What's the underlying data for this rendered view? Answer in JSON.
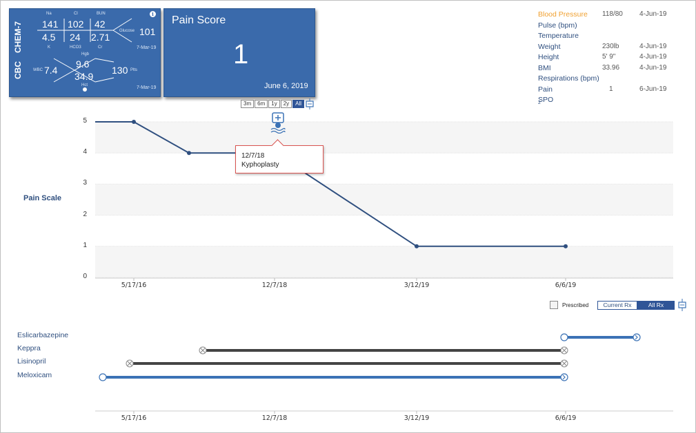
{
  "chem7": {
    "title": "CHEM-7",
    "na_label": "Na",
    "cl_label": "Cl",
    "bun_label": "BUN",
    "na": "141",
    "cl": "102",
    "bun": "42",
    "k": "4.5",
    "hco3": "24",
    "cr": "2.71",
    "k_label": "K",
    "hco3_label": "HCO3",
    "cr_label": "Cr",
    "glucose_label": "Glucose",
    "glucose": "101",
    "date": "7-Mar-19"
  },
  "cbc": {
    "title": "CBC",
    "hgb_label": "Hgb",
    "hgb": "9.6",
    "wbc_label": "WBC",
    "wbc": "7.4",
    "hct": "34.9",
    "hct_label": "Hct",
    "plt_label": "Plts",
    "plt": "130",
    "date": "7-Mar-19"
  },
  "pain_card": {
    "title": "Pain Score",
    "value": "1",
    "date": "June 6, 2019"
  },
  "range_buttons": [
    "3m",
    "6m",
    "1y",
    "2y",
    "All"
  ],
  "range_active": "All",
  "vitals": [
    {
      "name": "Blood Pressure",
      "value": "118/80",
      "date": "4-Jun-19"
    },
    {
      "name": "Pulse (bpm)",
      "value": "",
      "date": ""
    },
    {
      "name": "Temperature",
      "value": "",
      "date": ""
    },
    {
      "name": "Weight",
      "value": "230lb",
      "date": "4-Jun-19"
    },
    {
      "name": "Height",
      "value": "5' 9\"",
      "date": "4-Jun-19"
    },
    {
      "name": "BMI",
      "value": "33.96",
      "date": "4-Jun-19"
    },
    {
      "name": "Respirations (bpm)",
      "value": "",
      "date": ""
    },
    {
      "name": "Pain",
      "value": "1",
      "date": "6-Jun-19"
    }
  ],
  "spo2": {
    "base": "SPO",
    "sub": "2"
  },
  "chart": {
    "ylabel": "Pain Scale",
    "y_ticks": [
      "0",
      "1",
      "2",
      "3",
      "4",
      "5"
    ],
    "x_ticks": [
      "5/17/16",
      "12/7/18",
      "3/12/19",
      "6/6/19"
    ]
  },
  "chart_data": {
    "type": "line",
    "ylabel": "Pain Scale",
    "ylim": [
      0,
      5
    ],
    "x": [
      "5/17/16",
      "8/2017",
      "12/7/18",
      "3/12/19",
      "6/6/19"
    ],
    "series": [
      {
        "values": [
          5,
          4,
          4,
          1,
          1
        ]
      }
    ]
  },
  "tooltip": {
    "date": "12/7/18",
    "label": "Kyphoplasty"
  },
  "meds_controls": {
    "prescribed_label": "Prescribed",
    "current_rx": "Current Rx",
    "all_rx": "All Rx"
  },
  "medications": [
    {
      "name": "Eslicarbazepine"
    },
    {
      "name": "Keppra"
    },
    {
      "name": "Lisinopril"
    },
    {
      "name": "Meloxicam"
    }
  ],
  "timeline_x_ticks": [
    "5/17/16",
    "12/7/18",
    "3/12/19",
    "6/6/19"
  ],
  "colors": {
    "card": "#3a6aab",
    "line": "#2f4f7f",
    "accent": "#f0a030",
    "active_med": "#3b72b5",
    "inactive_med": "#444444"
  }
}
